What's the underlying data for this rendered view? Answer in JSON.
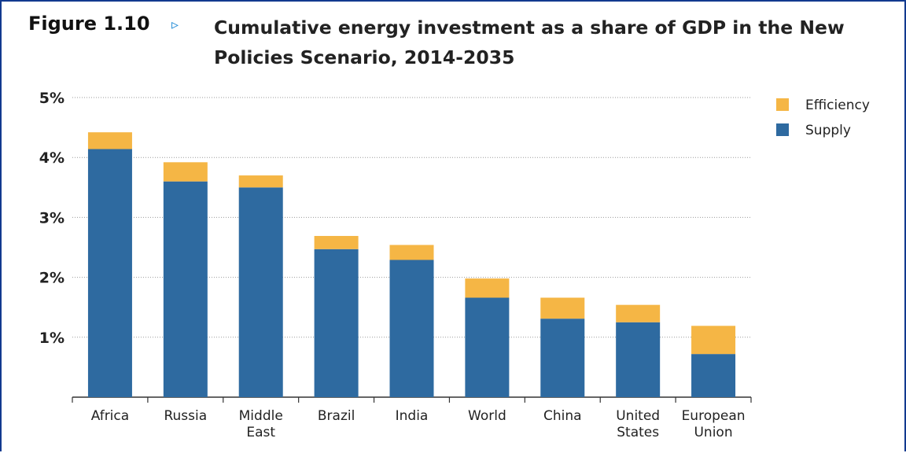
{
  "figure": {
    "label": "Figure 1.10",
    "arrow": "▹",
    "title": "Cumulative energy investment as a share of GDP in the New Policies Scenario, 2014-2035"
  },
  "colors": {
    "supply": "#2e6aa0",
    "efficiency": "#f5b645",
    "grid": "#9a9a9a",
    "border": "#123a8f"
  },
  "chart_data": {
    "type": "bar",
    "stacked": true,
    "categories": [
      [
        "Africa"
      ],
      [
        "Russia"
      ],
      [
        "Middle",
        "East"
      ],
      [
        "Brazil"
      ],
      [
        "India"
      ],
      [
        "World"
      ],
      [
        "China"
      ],
      [
        "United",
        "States"
      ],
      [
        "European",
        "Union"
      ]
    ],
    "series": [
      {
        "name": "Supply",
        "color": "#2e6aa0",
        "values": [
          4.14,
          3.6,
          3.5,
          2.47,
          2.29,
          1.66,
          1.31,
          1.25,
          0.72
        ]
      },
      {
        "name": "Efficiency",
        "color": "#f5b645",
        "values": [
          0.28,
          0.32,
          0.2,
          0.22,
          0.25,
          0.32,
          0.35,
          0.29,
          0.47
        ]
      }
    ],
    "ylim": [
      0,
      5
    ],
    "yticks": [
      {
        "value": 1,
        "label": "1%"
      },
      {
        "value": 2,
        "label": "2%"
      },
      {
        "value": 3,
        "label": "3%"
      },
      {
        "value": 4,
        "label": "4%"
      },
      {
        "value": 5,
        "label": "5%"
      }
    ],
    "grid": true,
    "legend": {
      "position": "top-right",
      "items": [
        {
          "label": "Efficiency",
          "color": "#f5b645"
        },
        {
          "label": "Supply",
          "color": "#2e6aa0"
        }
      ]
    }
  }
}
